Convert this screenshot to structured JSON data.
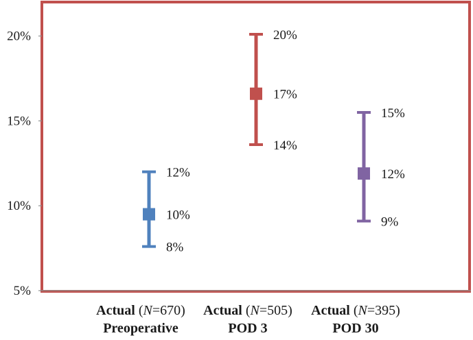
{
  "chart_data": {
    "type": "errorbar",
    "y_axis": {
      "min": 5,
      "max": 22,
      "ticks": [
        5,
        10,
        15,
        20
      ],
      "tick_labels": [
        "5%",
        "10%",
        "15%",
        "20%"
      ]
    },
    "grid": false,
    "frame_color": "#C0504D",
    "categories": [
      {
        "label_bold": "Actual",
        "label_open": " (",
        "label_italic": "N",
        "label_n": "=670)",
        "label_line2": "Preoperative"
      },
      {
        "label_bold": "Actual",
        "label_open": " (",
        "label_italic": "N",
        "label_n": "=505)",
        "label_line2": "POD 3"
      },
      {
        "label_bold": "Actual",
        "label_open": " (",
        "label_italic": "N",
        "label_n": "=395)",
        "label_line2": "POD 30"
      }
    ],
    "series": [
      {
        "value": 9.5,
        "low": 7.6,
        "high": 12.0,
        "value_label": "10%",
        "low_label": "8%",
        "high_label": "12%",
        "color": "#4F81BD"
      },
      {
        "value": 16.6,
        "low": 13.6,
        "high": 20.1,
        "value_label": "17%",
        "low_label": "14%",
        "high_label": "20%",
        "color": "#C0504D"
      },
      {
        "value": 11.9,
        "low": 9.1,
        "high": 15.5,
        "value_label": "12%",
        "low_label": "9%",
        "high_label": "15%",
        "color": "#8064A2"
      }
    ]
  }
}
